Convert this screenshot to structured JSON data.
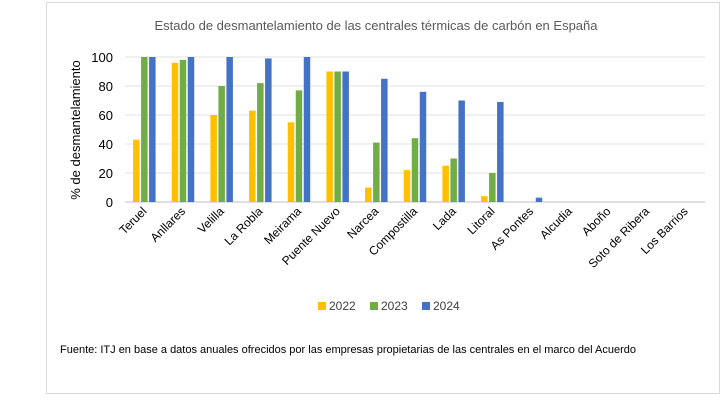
{
  "chart_data": {
    "type": "bar",
    "title": "Estado de desmantelamiento de las centrales térmicas de carbón en España",
    "xlabel": "",
    "ylabel": "% de desmantelamiento",
    "ylim": [
      0,
      100
    ],
    "yticks": [
      0,
      20,
      40,
      60,
      80,
      100
    ],
    "grid": true,
    "legend_position": "bottom",
    "categories": [
      "Teruel",
      "Anllares",
      "Velilla",
      "La Robla",
      "Meirama",
      "Puente Nuevo",
      "Narcea",
      "Compostilla",
      "Lada",
      "Litoral",
      "As Pontes",
      "Alcudia",
      "Aboño",
      "Soto de Ribera",
      "Los Barrios"
    ],
    "series": [
      {
        "name": "2022",
        "color": "#ffc000",
        "values": [
          43,
          96,
          60,
          63,
          55,
          90,
          10,
          22,
          25,
          4,
          0,
          0,
          0,
          0,
          0
        ]
      },
      {
        "name": "2023",
        "color": "#70ad47",
        "values": [
          100,
          98,
          80,
          82,
          77,
          90,
          41,
          44,
          30,
          20,
          0,
          0,
          0,
          0,
          0
        ]
      },
      {
        "name": "2024",
        "color": "#4472c4",
        "values": [
          100,
          100,
          100,
          99,
          100,
          90,
          85,
          76,
          70,
          69,
          3,
          0,
          0,
          0,
          0
        ]
      }
    ]
  },
  "source_note": "Fuente: ITJ en base a datos anuales ofrecidos por las empresas propietarias de las centrales  en el marco del Acuerdo"
}
